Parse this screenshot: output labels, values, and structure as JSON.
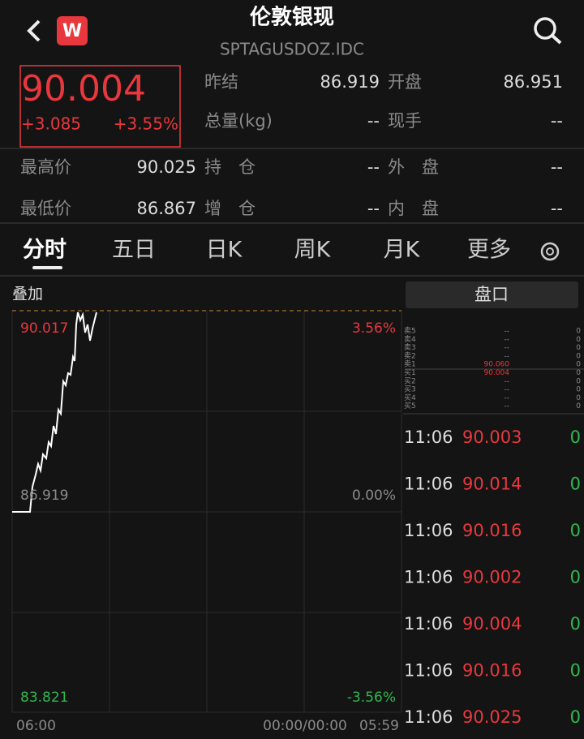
{
  "header": {
    "title": "伦敦银现",
    "code": "SPTAGUSDOZ.IDC",
    "logo": "W"
  },
  "quote": {
    "price": "90.004",
    "change": "+3.085",
    "change_pct": "+3.55%"
  },
  "stats": [
    [
      "昨结",
      "86.919",
      "开盘",
      "86.951"
    ],
    [
      "总量(kg)",
      "--",
      "现手",
      "--"
    ]
  ],
  "stats2": [
    [
      "最高价",
      "90.025",
      "持　仓",
      "--",
      "外　盘",
      "--"
    ],
    [
      "最低价",
      "86.867",
      "增　仓",
      "--",
      "内　盘",
      "--"
    ]
  ],
  "tabs": [
    "分时",
    "五日",
    "日K",
    "周K",
    "月K",
    "更多"
  ],
  "chart": {
    "overlay": "叠加",
    "high_price": "90.017",
    "high_pct": "3.56%",
    "mid_price": "86.919",
    "mid_pct": "0.00%",
    "low_price": "83.821",
    "low_pct": "-3.56%",
    "time_start": "06:00",
    "time_mid": "00:00/00:00",
    "time_end": "05:59"
  },
  "orderbook": {
    "title": "盘口",
    "asks": [
      {
        "label": "卖5",
        "price": "--",
        "volume": "0"
      },
      {
        "label": "卖4",
        "price": "--",
        "volume": "0"
      },
      {
        "label": "卖3",
        "price": "--",
        "volume": "0"
      },
      {
        "label": "卖2",
        "price": "--",
        "volume": "0"
      },
      {
        "label": "卖1",
        "price": "90.060",
        "volume": "0"
      }
    ],
    "bids": [
      {
        "label": "买1",
        "price": "90.004",
        "volume": "0"
      },
      {
        "label": "买2",
        "price": "--",
        "volume": "0"
      },
      {
        "label": "买3",
        "price": "--",
        "volume": "0"
      },
      {
        "label": "买4",
        "price": "--",
        "volume": "0"
      },
      {
        "label": "买5",
        "price": "--",
        "volume": "0"
      }
    ]
  },
  "trades": [
    {
      "time": "11:06",
      "price": "90.003",
      "volume": "0"
    },
    {
      "time": "11:06",
      "price": "90.014",
      "volume": "0"
    },
    {
      "time": "11:06",
      "price": "90.016",
      "volume": "0"
    },
    {
      "time": "11:06",
      "price": "90.002",
      "volume": "0"
    },
    {
      "time": "11:06",
      "price": "90.004",
      "volume": "0"
    },
    {
      "time": "11:06",
      "price": "90.016",
      "volume": "0"
    },
    {
      "time": "11:06",
      "price": "90.025",
      "volume": "0"
    }
  ]
}
